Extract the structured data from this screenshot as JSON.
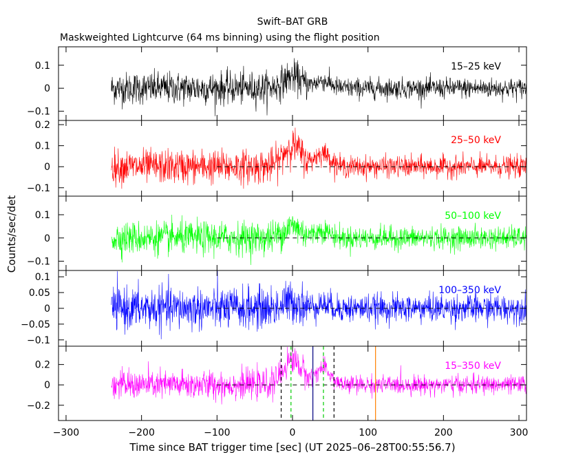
{
  "chart_data": {
    "type": "line",
    "title": "Swift–BAT GRB",
    "subtitle": "Maskweighted Lightcurve (64 ms binning) using the flight position",
    "xlabel": "Time since BAT trigger time [sec] (UT 2025–06–28T00:55:56.7)",
    "ylabel": "Counts/sec/det",
    "xlim": [
      -310,
      310
    ],
    "xticks": [
      -300,
      -200,
      -100,
      0,
      100,
      200,
      300
    ],
    "xtick_labels": [
      "−300",
      "−200",
      "−100",
      "0",
      "100",
      "200",
      "300"
    ],
    "data_start": -240,
    "data_end": 310,
    "grid": false,
    "panels": [
      {
        "band": "15–25 keV",
        "color": "#000000",
        "ylim": [
          -0.14,
          0.18
        ],
        "yticks": [
          -0.1,
          0,
          0.1
        ],
        "ytick_labels": [
          "−0.1",
          "0",
          "0.1"
        ],
        "noise_before": 0.035,
        "noise_after": 0.022,
        "peak": 0.05,
        "zero_line": false
      },
      {
        "band": "25–50 keV",
        "color": "#ff0000",
        "ylim": [
          -0.14,
          0.22
        ],
        "yticks": [
          -0.1,
          0,
          0.1,
          0.2
        ],
        "ytick_labels": [
          "−0.1",
          "0",
          "0.1",
          "0.2"
        ],
        "noise_before": 0.04,
        "noise_after": 0.025,
        "peak": 0.1,
        "zero_line": true
      },
      {
        "band": "50–100 keV",
        "color": "#00ff00",
        "ylim": [
          -0.14,
          0.18
        ],
        "yticks": [
          -0.1,
          0,
          0.1
        ],
        "ytick_labels": [
          "−0.1",
          "0",
          "0.1"
        ],
        "noise_before": 0.035,
        "noise_after": 0.024,
        "peak": 0.05,
        "zero_line": true
      },
      {
        "band": "100–350 keV",
        "color": "#0000ff",
        "ylim": [
          -0.12,
          0.12
        ],
        "yticks": [
          -0.1,
          -0.05,
          0,
          0.05,
          0.1
        ],
        "ytick_labels": [
          "−0.1",
          "−0.05",
          "0",
          "0.05",
          "0.1"
        ],
        "noise_before": 0.033,
        "noise_after": 0.022,
        "peak": 0.02,
        "zero_line": true
      },
      {
        "band": "15–350 keV",
        "color": "#ff00ff",
        "ylim": [
          -0.35,
          0.38
        ],
        "yticks": [
          -0.2,
          0,
          0.2
        ],
        "ytick_labels": [
          "−0.2",
          "0",
          "0.2"
        ],
        "noise_before": 0.07,
        "noise_after": 0.045,
        "peak": 0.25,
        "zero_line": true
      }
    ],
    "pulses": [
      {
        "t": 0,
        "width": 12,
        "amp": 1.0
      },
      {
        "t": 40,
        "width": 10,
        "amp": 0.65
      }
    ],
    "markers": [
      {
        "x": -15,
        "color": "#000000",
        "style": "dashed"
      },
      {
        "x": 55,
        "color": "#000000",
        "style": "dashed"
      },
      {
        "x": -2,
        "color": "#00cc00",
        "style": "dashed"
      },
      {
        "x": 41,
        "color": "#00cc00",
        "style": "dashed"
      },
      {
        "x": 27,
        "color": "#000080",
        "style": "solid"
      },
      {
        "x": 110,
        "color": "#ff8000",
        "style": "solid"
      }
    ]
  }
}
